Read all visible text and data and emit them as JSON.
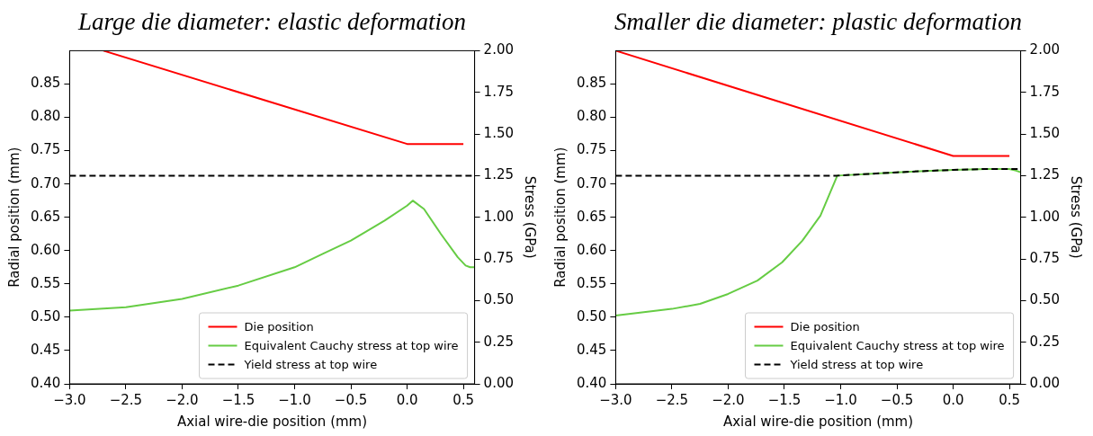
{
  "chart_data": [
    {
      "type": "line",
      "title": "Large die diameter: elastic deformation",
      "xlabel": "Axial wire-die position (mm)",
      "ylabel": "Radial position (mm)",
      "y2label": "Stress (GPa)",
      "legend": "bottom right",
      "marker": "none",
      "xlim": [
        -3,
        0.6
      ],
      "xticks": [
        {
          "value": -3,
          "label": "−3.0"
        },
        {
          "value": -2.5,
          "label": "−2.5"
        },
        {
          "value": -2,
          "label": "−2.0"
        },
        {
          "value": -1.5,
          "label": "−1.5"
        },
        {
          "value": -1,
          "label": "−1.0"
        },
        {
          "value": -0.5,
          "label": "−0.5"
        },
        {
          "value": 0,
          "label": "0.0"
        },
        {
          "value": 0.5,
          "label": "0.5"
        }
      ],
      "ylim": [
        0.4,
        0.9
      ],
      "yticks": [
        {
          "value": 0.4,
          "label": "0.40"
        },
        0.45,
        {
          "value": 0.5,
          "label": "0.50"
        },
        0.55,
        {
          "value": 0.6,
          "label": "0.60"
        },
        0.65,
        {
          "value": 0.7,
          "label": "0.70"
        },
        0.75,
        {
          "value": 0.8,
          "label": "0.80"
        },
        0.85
      ],
      "y2lim": [
        0,
        2
      ],
      "y2ticks": [
        {
          "value": 0,
          "label": "0.00"
        },
        0.25,
        {
          "value": 0.5,
          "label": "0.50"
        },
        0.75,
        {
          "value": 1,
          "label": "1.00"
        },
        1.25,
        {
          "value": 1.5,
          "label": "1.50"
        },
        1.75,
        {
          "value": 2,
          "label": "2.00"
        }
      ],
      "series": [
        {
          "name": "Die position",
          "color": "#ff0000",
          "x": [
            -2.7,
            0,
            0.5
          ],
          "values": [
            0.9,
            0.76,
            0.76
          ]
        },
        {
          "name": "Equivalent Cauchy stress at top wire",
          "color": "#66cc44",
          "axis": "y2",
          "x": [
            -3,
            -2.5,
            -2,
            -1.5,
            -1,
            -0.75,
            -0.5,
            -0.2,
            0,
            0.05,
            0.15,
            0.3,
            0.45,
            0.52,
            0.56,
            0.6
          ],
          "values": [
            0.44,
            0.46,
            0.51,
            0.59,
            0.7,
            0.78,
            0.86,
            0.98,
            1.07,
            1.1,
            1.05,
            0.9,
            0.76,
            0.71,
            0.7,
            0.7
          ]
        },
        {
          "name": "Yield stress at top wire",
          "color": "#000000",
          "axis": "y2",
          "line_style": "dashed",
          "x": [
            -3,
            0.6
          ],
          "values": [
            1.25,
            1.25
          ]
        }
      ]
    },
    {
      "type": "line",
      "title": "Smaller die diameter: plastic deformation",
      "xlabel": "Axial wire-die position (mm)",
      "ylabel": "Radial position (mm)",
      "y2label": "Stress (GPa)",
      "legend": "bottom right",
      "marker": "none",
      "xlim": [
        -3,
        0.6
      ],
      "xticks": [
        {
          "value": -3,
          "label": "−3.0"
        },
        {
          "value": -2.5,
          "label": "−2.5"
        },
        {
          "value": -2,
          "label": "−2.0"
        },
        {
          "value": -1.5,
          "label": "−1.5"
        },
        {
          "value": -1,
          "label": "−1.0"
        },
        {
          "value": -0.5,
          "label": "−0.5"
        },
        {
          "value": 0,
          "label": "0.0"
        },
        {
          "value": 0.5,
          "label": "0.5"
        }
      ],
      "ylim": [
        0.4,
        0.9
      ],
      "yticks": [
        {
          "value": 0.4,
          "label": "0.40"
        },
        0.45,
        {
          "value": 0.5,
          "label": "0.50"
        },
        0.55,
        {
          "value": 0.6,
          "label": "0.60"
        },
        0.65,
        {
          "value": 0.7,
          "label": "0.70"
        },
        0.75,
        {
          "value": 0.8,
          "label": "0.80"
        },
        0.85
      ],
      "y2lim": [
        0,
        2
      ],
      "y2ticks": [
        {
          "value": 0,
          "label": "0.00"
        },
        0.25,
        {
          "value": 0.5,
          "label": "0.50"
        },
        0.75,
        {
          "value": 1,
          "label": "1.00"
        },
        1.25,
        {
          "value": 1.5,
          "label": "1.50"
        },
        1.75,
        {
          "value": 2,
          "label": "2.00"
        }
      ],
      "series": [
        {
          "name": "Die position",
          "color": "#ff0000",
          "x": [
            -3,
            0,
            0.5
          ],
          "values": [
            0.9,
            0.742,
            0.742
          ]
        },
        {
          "name": "Equivalent Cauchy stress at top wire",
          "color": "#66cc44",
          "axis": "y2",
          "x": [
            -3,
            -2.5,
            -2.25,
            -2,
            -1.74,
            -1.52,
            -1.34,
            -1.18,
            -1.03,
            -0.5,
            0,
            0.3,
            0.5,
            0.56,
            0.6
          ],
          "values": [
            0.41,
            0.45,
            0.48,
            0.54,
            0.62,
            0.73,
            0.86,
            1.01,
            1.25,
            1.27,
            1.285,
            1.29,
            1.29,
            1.28,
            1.27
          ]
        },
        {
          "name": "Yield stress at top wire",
          "color": "#000000",
          "axis": "y2",
          "line_style": "dashed",
          "x": [
            -3,
            -1.03,
            -0.5,
            0,
            0.3,
            0.5,
            0.6
          ],
          "values": [
            1.25,
            1.25,
            1.27,
            1.285,
            1.29,
            1.29,
            1.29
          ]
        }
      ]
    }
  ]
}
